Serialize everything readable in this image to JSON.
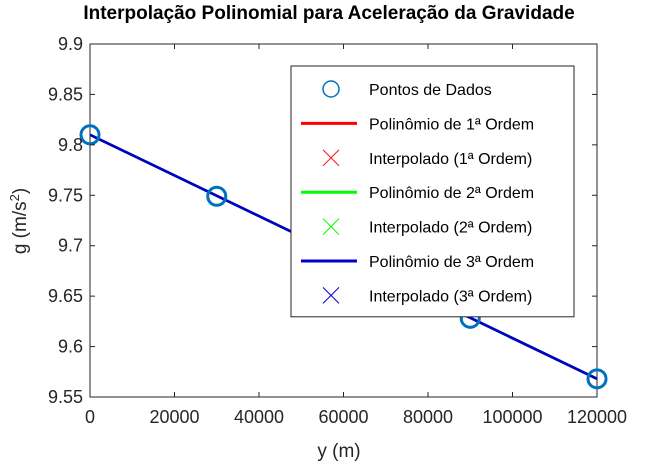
{
  "chart_data": {
    "type": "line",
    "title": "Interpolação Polinomial para Aceleração da Gravidade",
    "xlabel": "y (m)",
    "ylabel": "g (m/s²)",
    "xlim": [
      0,
      120000
    ],
    "ylim": [
      9.55,
      9.9
    ],
    "xticks": [
      0,
      20000,
      40000,
      60000,
      80000,
      100000,
      120000
    ],
    "yticks": [
      9.55,
      9.6,
      9.65,
      9.7,
      9.75,
      9.8,
      9.85,
      9.9
    ],
    "xtick_labels": [
      "0",
      "20000",
      "40000",
      "60000",
      "80000",
      "100000",
      "120000"
    ],
    "ytick_labels": [
      "9.55",
      "9.6",
      "9.65",
      "9.7",
      "9.75",
      "9.8",
      "9.85",
      "9.9"
    ],
    "grid": false,
    "legend_position": "top-right",
    "data_points": {
      "name": "Pontos de Dados",
      "color": "#0072bd",
      "x": [
        0,
        30000,
        60000,
        90000,
        120000
      ],
      "y": [
        9.81,
        9.749,
        9.688,
        9.628,
        9.568
      ]
    },
    "series": [
      {
        "name": "Polinômio de 1ª Ordem",
        "color": "#ff0000",
        "x": [
          0,
          120000
        ],
        "y": [
          9.81,
          9.568
        ]
      },
      {
        "name": "Polinômio de 2ª Ordem",
        "color": "#00ff00",
        "x": [
          0,
          120000
        ],
        "y": [
          9.81,
          9.568
        ]
      },
      {
        "name": "Polinômio de 3ª Ordem",
        "color": "#0000cc",
        "x": [
          0,
          120000
        ],
        "y": [
          9.81,
          9.568
        ]
      }
    ],
    "legend": [
      {
        "label": "Pontos de Dados",
        "marker": "circle",
        "color": "#0072bd"
      },
      {
        "label": "Polinômio de 1ª Ordem",
        "marker": "line",
        "color": "#ff0000"
      },
      {
        "label": "Interpolado (1ª Ordem)",
        "marker": "x",
        "color": "#ff0000"
      },
      {
        "label": "Polinômio de 2ª Ordem",
        "marker": "line",
        "color": "#00ff00"
      },
      {
        "label": "Interpolado (2ª Ordem)",
        "marker": "x",
        "color": "#00ff00"
      },
      {
        "label": "Polinômio de 3ª Ordem",
        "marker": "line",
        "color": "#0000cc"
      },
      {
        "label": "Interpolado (3ª Ordem)",
        "marker": "x",
        "color": "#0000cc"
      }
    ]
  }
}
